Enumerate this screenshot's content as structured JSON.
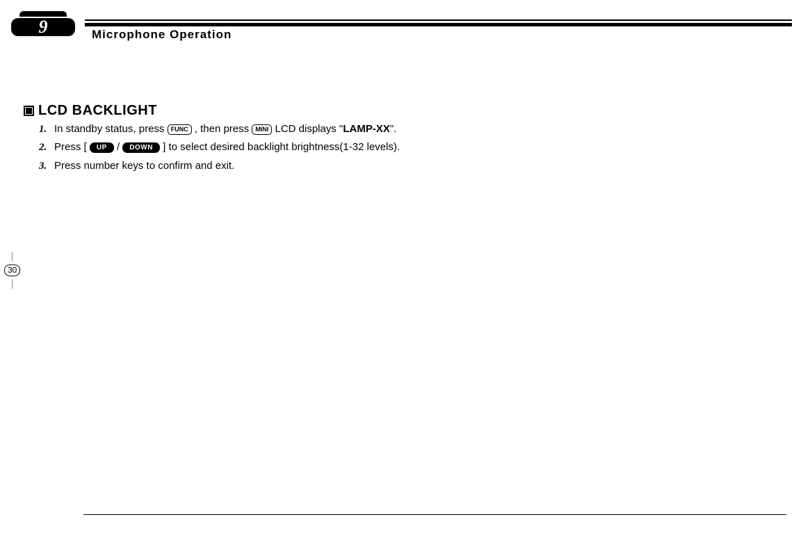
{
  "header": {
    "chapter_number": "9",
    "chapter_title": "Microphone Operation"
  },
  "section": {
    "title": "LCD BACKLIGHT"
  },
  "keys": {
    "func": "FUNC",
    "mini": "MINI",
    "up": "UP",
    "down": "DOWN"
  },
  "steps": {
    "s1": {
      "num": "1.",
      "t1": "In standby status, press ",
      "t2": " , then press ",
      "t3": " LCD displays \"",
      "bold": "LAMP-XX",
      "t4": "\"."
    },
    "s2": {
      "num": "2.",
      "t1": "Press [ ",
      "t2": " / ",
      "t3": " ] to select desired backlight brightness(1-32 levels)."
    },
    "s3": {
      "num": "3.",
      "t1": "Press number keys to confirm and exit."
    }
  },
  "page_number": "30",
  "colors": {
    "text": "#000000",
    "background": "#ffffff"
  }
}
